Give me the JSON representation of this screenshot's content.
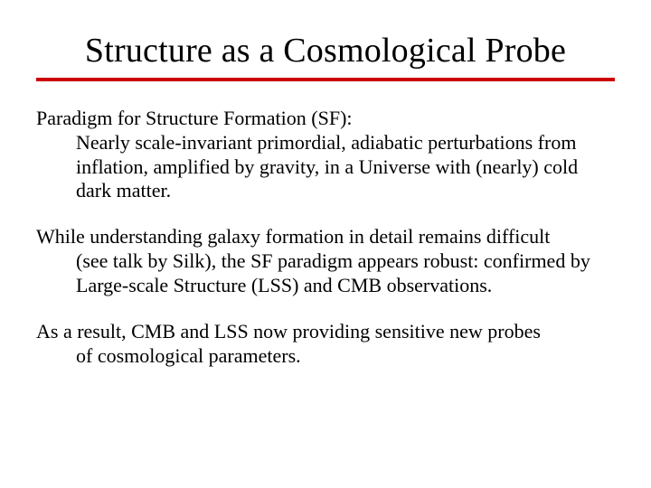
{
  "slide": {
    "title": "Structure as a Cosmological Probe",
    "underline_color": "#cc0000",
    "background_color": "#ffffff",
    "text_color": "#000000",
    "title_fontsize": 38,
    "body_fontsize": 22,
    "font_family": "Times New Roman",
    "paragraphs": [
      {
        "lead": "Paradigm for Structure Formation (SF):",
        "indent": "Nearly scale-invariant primordial, adiabatic perturbations from inflation, amplified by gravity, in a Universe with (nearly) cold dark matter."
      },
      {
        "lead": "While understanding galaxy formation in detail remains difficult",
        "indent": "(see talk by Silk), the SF paradigm appears robust: confirmed by Large-scale Structure (LSS) and CMB observations."
      },
      {
        "lead": "As a result, CMB and LSS now providing sensitive new probes",
        "indent": "of cosmological parameters."
      }
    ]
  }
}
